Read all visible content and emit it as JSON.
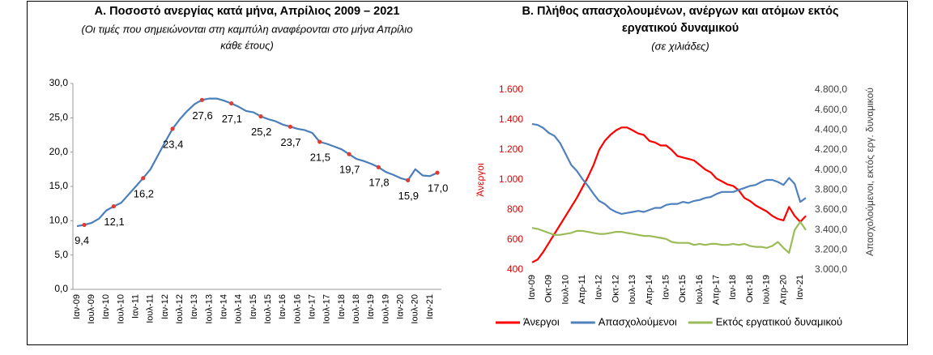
{
  "chart_data": [
    {
      "type": "line",
      "title": [
        "Α. Ποσοστό ανεργίας κατά μήνα, Απρίλιος 2009 – 2021"
      ],
      "subtitle": [
        "(Οι τιμές που σημειώνονται στη καμπύλη αναφέρονται στο μήνα Απρίλιο",
        "κάθε έτους)"
      ],
      "categories": [
        "Ιαν-09",
        null,
        "Ιουλ-09",
        null,
        "Ιαν-10",
        null,
        "Ιουλ-10",
        null,
        "Ιαν-11",
        null,
        "Ιουλ-11",
        null,
        "Ιαν-12",
        null,
        "Ιουλ-12",
        null,
        "Ιαν-13",
        null,
        "Ιουλ-13",
        null,
        "Ιαν-14",
        null,
        "Ιουλ-14",
        null,
        "Ιαν-15",
        null,
        "Ιουλ-15",
        null,
        "Ιαν-16",
        null,
        "Ιουλ-16",
        null,
        "Ιαν-17",
        null,
        "Ιουλ-17",
        null,
        "Ιαν-18",
        null,
        "Ιουλ-18",
        null,
        "Ιαν-19",
        null,
        "Ιουλ-19",
        null,
        "Ιαν-20",
        null,
        "Ιουλ-20",
        null,
        "Ιαν-21",
        null
      ],
      "series": [
        {
          "color": "#4a7ebb",
          "marker_color": "#e03c31",
          "values": [
            9.2,
            9.4,
            9.7,
            10.3,
            11.5,
            12.1,
            12.6,
            13.8,
            15.0,
            16.2,
            17.5,
            19.5,
            21.5,
            23.4,
            24.8,
            26.0,
            27.0,
            27.6,
            27.8,
            27.8,
            27.5,
            27.1,
            26.6,
            26.0,
            25.8,
            25.2,
            24.8,
            24.5,
            24.0,
            23.7,
            23.4,
            23.2,
            22.8,
            21.5,
            21.2,
            20.8,
            20.4,
            19.7,
            19.0,
            18.7,
            18.3,
            17.8,
            17.1,
            16.7,
            16.2,
            15.9,
            17.5,
            16.6,
            16.5,
            17.0
          ],
          "value_labels": [
            null,
            "9,4",
            null,
            null,
            null,
            "12,1",
            null,
            null,
            null,
            "16,2",
            null,
            null,
            null,
            "23,4",
            null,
            null,
            null,
            "27,6",
            null,
            null,
            null,
            "27,1",
            null,
            null,
            null,
            "25,2",
            null,
            null,
            null,
            "23,7",
            null,
            null,
            null,
            "21,5",
            null,
            null,
            null,
            "19,7",
            null,
            null,
            null,
            "17,8",
            null,
            null,
            null,
            "15,9",
            null,
            null,
            null,
            "17,0"
          ]
        }
      ],
      "ylim": [
        0,
        30
      ],
      "yticks": [
        {
          "value": 0,
          "label": "0,0"
        },
        {
          "value": 5,
          "label": "5,0"
        },
        {
          "value": 10,
          "label": "10,0"
        },
        {
          "value": 15,
          "label": "15,0"
        },
        {
          "value": 20,
          "label": "20,0"
        },
        {
          "value": 25,
          "label": "25,0"
        },
        {
          "value": 30,
          "label": "30,0"
        }
      ],
      "grid": false
    },
    {
      "type": "line",
      "title": [
        "Β. Πλήθος απασχολουμένων, ανέργων και ατόμων εκτός",
        "εργατικού δυναμικού"
      ],
      "subtitle": [
        "(σε χιλιάδες)"
      ],
      "y_label": "Άνεργοι",
      "y2_label": "Απασχολούμενοι, εκτός εργ. δυναμικού",
      "categories": [
        "Ιαν-09",
        null,
        null,
        "Οκτ-09",
        null,
        null,
        "Ιουλ-10",
        null,
        null,
        "Απρ-11",
        null,
        null,
        "Ιαν-12",
        null,
        null,
        "Οκτ-12",
        null,
        null,
        "Ιουλ-13",
        null,
        null,
        "Απρ-14",
        null,
        null,
        "Ιαν-15",
        null,
        null,
        "Οκτ-15",
        null,
        null,
        "Ιουλ-16",
        null,
        null,
        "Απρ-17",
        null,
        null,
        "Ιαν-18",
        null,
        null,
        "Οκτ-18",
        null,
        null,
        "Ιουλ-19",
        null,
        null,
        "Απρ-20",
        null,
        null,
        "Ιαν-21",
        null
      ],
      "series": [
        {
          "name": "Άνεργοι",
          "color": "#ff0000",
          "values": [
            450,
            470,
            520,
            580,
            640,
            700,
            760,
            820,
            880,
            950,
            1020,
            1100,
            1200,
            1260,
            1300,
            1330,
            1350,
            1350,
            1330,
            1310,
            1300,
            1260,
            1250,
            1230,
            1230,
            1200,
            1160,
            1150,
            1140,
            1130,
            1100,
            1070,
            1050,
            1010,
            990,
            970,
            960,
            930,
            880,
            860,
            830,
            810,
            790,
            760,
            740,
            730,
            820,
            760,
            720,
            760
          ]
        },
        {
          "name": "Απασχολούμενοι",
          "color": "#4f81bd",
          "axis": "y2",
          "values": [
            4460,
            4450,
            4420,
            4370,
            4340,
            4270,
            4160,
            4050,
            3990,
            3910,
            3840,
            3760,
            3690,
            3660,
            3610,
            3580,
            3560,
            3570,
            3580,
            3590,
            3580,
            3600,
            3620,
            3620,
            3650,
            3660,
            3660,
            3680,
            3670,
            3690,
            3700,
            3720,
            3730,
            3760,
            3780,
            3780,
            3780,
            3800,
            3820,
            3840,
            3850,
            3880,
            3900,
            3900,
            3880,
            3850,
            3920,
            3860,
            3680,
            3720
          ]
        },
        {
          "name": "Εκτός εργατικού δυναμικού",
          "color": "#9bbb59",
          "axis": "y2",
          "values": [
            3420,
            3410,
            3390,
            3370,
            3350,
            3350,
            3360,
            3370,
            3390,
            3390,
            3380,
            3370,
            3360,
            3360,
            3370,
            3380,
            3380,
            3370,
            3360,
            3350,
            3340,
            3340,
            3330,
            3320,
            3310,
            3280,
            3270,
            3270,
            3270,
            3250,
            3260,
            3250,
            3260,
            3260,
            3250,
            3250,
            3260,
            3250,
            3260,
            3240,
            3230,
            3230,
            3220,
            3240,
            3280,
            3220,
            3170,
            3400,
            3480,
            3400
          ]
        }
      ],
      "ylim": [
        400,
        1600
      ],
      "yticks": [
        400,
        600,
        800,
        {
          "value": 1000,
          "label": "1.000"
        },
        {
          "value": 1200,
          "label": "1.200"
        },
        {
          "value": 1400,
          "label": "1.400"
        },
        {
          "value": 1600,
          "label": "1.600"
        }
      ],
      "y2lim": [
        3000,
        4800
      ],
      "y2ticks": [
        {
          "value": 3000,
          "label": "3.000,0"
        },
        {
          "value": 3200,
          "label": "3.200,0"
        },
        {
          "value": 3400,
          "label": "3.400,0"
        },
        {
          "value": 3600,
          "label": "3.600,0"
        },
        {
          "value": 3800,
          "label": "3.800,0"
        },
        {
          "value": 4000,
          "label": "4.000,0"
        },
        {
          "value": 4200,
          "label": "4.200,0"
        },
        {
          "value": 4400,
          "label": "4.400,0"
        },
        {
          "value": 4600,
          "label": "4.600,0"
        },
        {
          "value": 4800,
          "label": "4.800,0"
        }
      ],
      "legend": "bottom",
      "grid": false
    }
  ]
}
